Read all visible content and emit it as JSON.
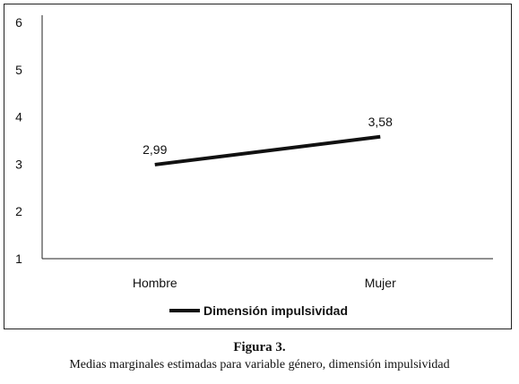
{
  "chart_data": {
    "type": "line",
    "categories": [
      "Hombre",
      "Mujer"
    ],
    "series": [
      {
        "name": "Dimensión impulsividad",
        "values": [
          2.99,
          3.58
        ],
        "color": "#111111"
      }
    ],
    "data_labels": [
      "2,99",
      "3,58"
    ],
    "yticks": [
      "1",
      "2",
      "3",
      "4",
      "5",
      "6"
    ],
    "ylim": [
      1,
      6
    ],
    "grid": false,
    "legend_position": "bottom"
  },
  "caption": {
    "title": "Figura 3.",
    "text": "Medias marginales estimadas para variable género, dimensión impulsividad"
  }
}
